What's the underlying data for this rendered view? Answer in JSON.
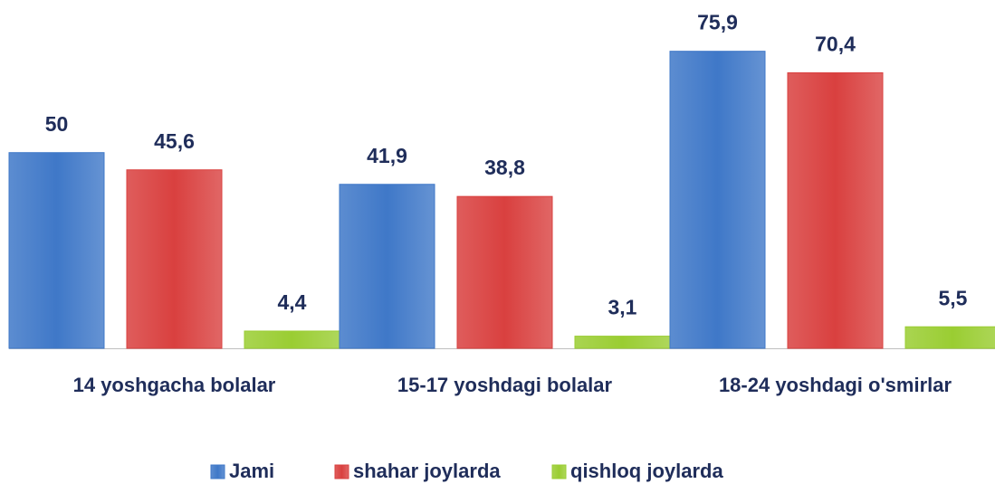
{
  "chart_data": {
    "type": "bar",
    "categories": [
      "14 yoshgacha bolalar",
      "15-17 yoshdagi bolalar",
      "18-24 yoshdagi o'smirlar"
    ],
    "series": [
      {
        "name": "Jami",
        "color": "#3f78c8",
        "values": [
          50,
          41.9,
          75.9
        ],
        "value_labels": [
          "50",
          "41,9",
          "75,9"
        ]
      },
      {
        "name": "shahar joylarda",
        "color": "#d9403f",
        "values": [
          45.6,
          38.8,
          70.4
        ],
        "value_labels": [
          "45,6",
          "38,8",
          "70,4"
        ]
      },
      {
        "name": "qishloq joylarda",
        "color": "#9acd32",
        "values": [
          4.4,
          3.1,
          5.5
        ],
        "value_labels": [
          "4,4",
          "3,1",
          "5,5"
        ]
      }
    ],
    "ylim": [
      0,
      89
    ],
    "legend": "bottom"
  }
}
